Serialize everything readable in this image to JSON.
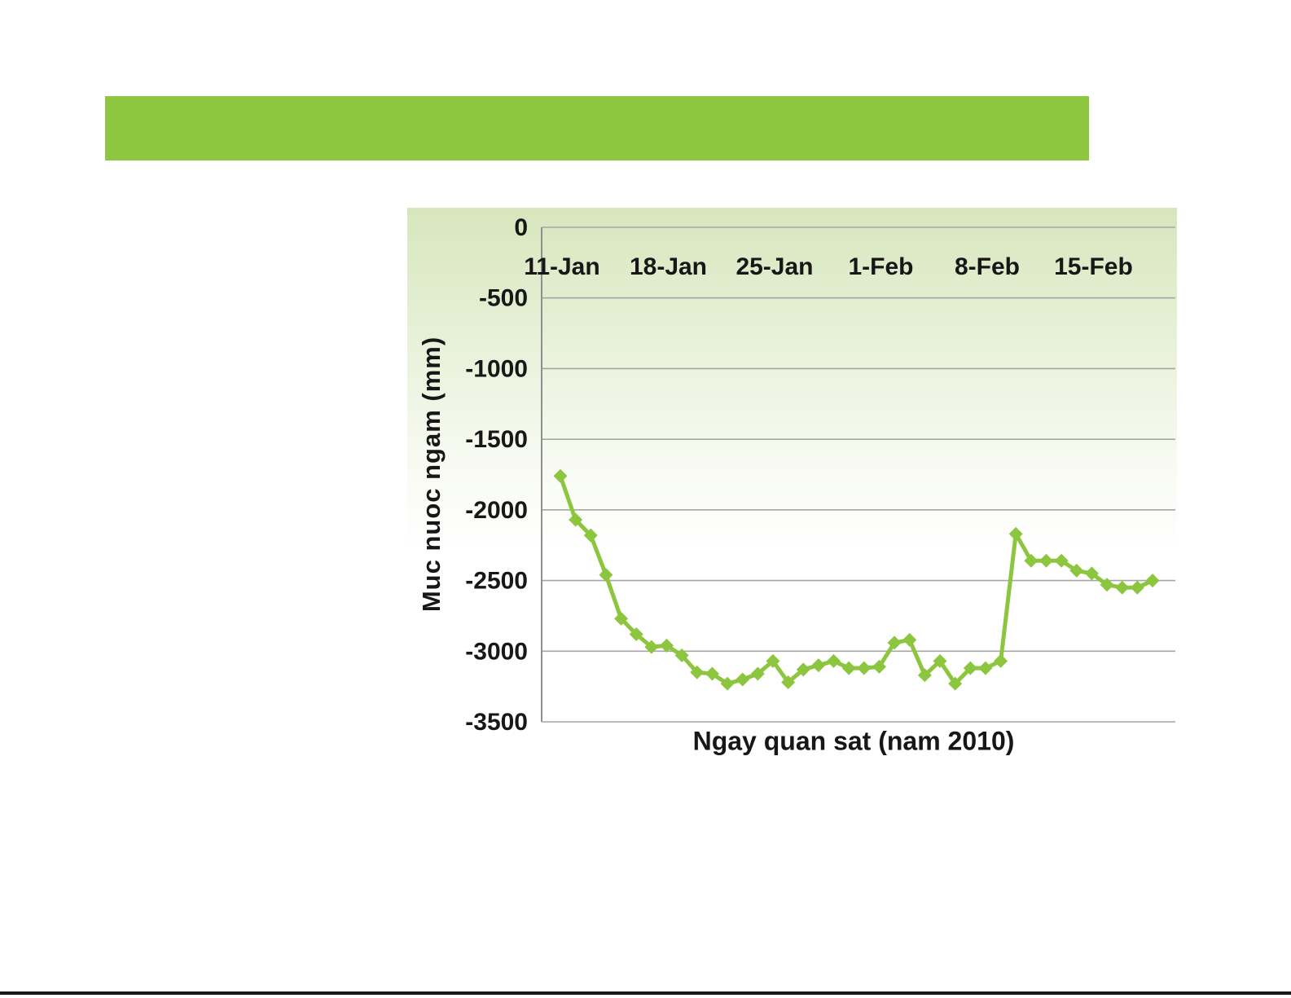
{
  "page": {
    "background_color": "#ffffff",
    "header_bar_color": "#8dc63f",
    "bottom_border_color": "#161616"
  },
  "chart_data": {
    "type": "line",
    "title": "",
    "xlabel": "Ngay quan sat (nam 2010)",
    "ylabel": "Muc nuoc ngam (mm)",
    "legend": "none",
    "grid": true,
    "marker": "diamond",
    "series_color": "#8cc63e",
    "gridline_color": "#a6a6a6",
    "axis_color": "#8f8f8f",
    "tick_label_color": "#171717",
    "ylim": [
      -3500,
      0
    ],
    "yticks": [
      0,
      -500,
      -1000,
      -1500,
      -2000,
      -2500,
      -3000,
      -3500
    ],
    "ytick_labels": [
      "0",
      "-500",
      "-1000",
      "-1500",
      "-2000",
      "-2500",
      "-3000",
      "-3500"
    ],
    "xtick_labels": [
      "11-Jan",
      "18-Jan",
      "25-Jan",
      "1-Feb",
      "8-Feb",
      "15-Feb"
    ],
    "xtick_indices": [
      0,
      7,
      14,
      21,
      28,
      35
    ],
    "x": [
      "11-Jan",
      "12-Jan",
      "13-Jan",
      "14-Jan",
      "15-Jan",
      "16-Jan",
      "17-Jan",
      "18-Jan",
      "19-Jan",
      "20-Jan",
      "21-Jan",
      "22-Jan",
      "23-Jan",
      "24-Jan",
      "25-Jan",
      "26-Jan",
      "27-Jan",
      "28-Jan",
      "29-Jan",
      "30-Jan",
      "31-Jan",
      "1-Feb",
      "2-Feb",
      "3-Feb",
      "4-Feb",
      "5-Feb",
      "6-Feb",
      "7-Feb",
      "8-Feb",
      "9-Feb",
      "10-Feb",
      "11-Feb",
      "12-Feb",
      "13-Feb",
      "14-Feb",
      "15-Feb",
      "16-Feb",
      "17-Feb",
      "18-Feb",
      "19-Feb"
    ],
    "values": [
      -1760,
      -2070,
      -2180,
      -2460,
      -2770,
      -2880,
      -2970,
      -2960,
      -3030,
      -3150,
      -3160,
      -3230,
      -3200,
      -3160,
      -3070,
      -3220,
      -3130,
      -3100,
      -3070,
      -3120,
      -3120,
      -3110,
      -2940,
      -2920,
      -3170,
      -3070,
      -3230,
      -3120,
      -3120,
      -3070,
      -2170,
      -2360,
      -2360,
      -2360,
      -2430,
      -2450,
      -2530,
      -2550,
      -2550,
      -2500
    ]
  }
}
